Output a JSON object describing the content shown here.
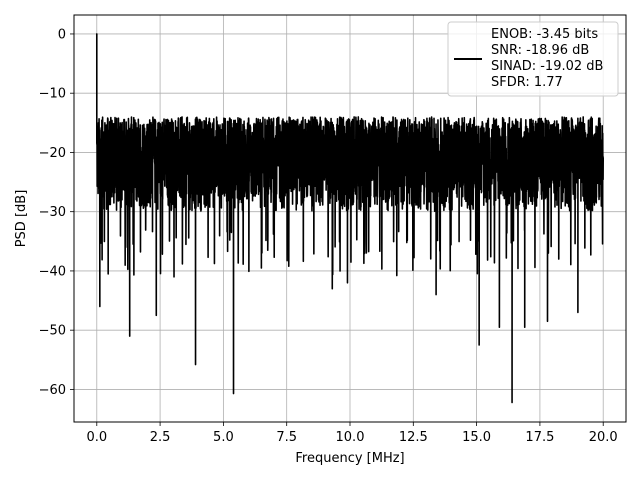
{
  "chart_data": {
    "type": "line",
    "title": "",
    "xlabel": "Frequency [MHz]",
    "ylabel": "PSD [dB]",
    "xlim": [
      -0.9,
      20.9
    ],
    "ylim": [
      -65.5,
      3.2
    ],
    "xticks": [
      0.0,
      2.5,
      5.0,
      7.5,
      10.0,
      12.5,
      15.0,
      17.5,
      20.0
    ],
    "xtick_labels": [
      "0.0",
      "2.5",
      "5.0",
      "7.5",
      "10.0",
      "12.5",
      "15.0",
      "17.5",
      "20.0"
    ],
    "yticks": [
      0,
      -10,
      -20,
      -30,
      -40,
      -50,
      -60
    ],
    "ytick_labels": [
      "0",
      "−10",
      "−20",
      "−30",
      "−40",
      "−50",
      "−60"
    ],
    "grid": true,
    "legend_position": "top-right",
    "series": [
      {
        "name": "ENOB: -3.45 bits\nSNR: -18.96 dB\nSINAD: -19.02 dB\nSFDR: 1.77",
        "color": "#000000",
        "x_start": 0.0,
        "x_end": 20.0,
        "noise_floor_typical_db": [
          -30,
          -14
        ],
        "peaks": [
          {
            "x": 0.0,
            "y": 0.0
          },
          {
            "x": 0.0,
            "y": -17
          },
          {
            "x": 0.12,
            "y": -46
          },
          {
            "x": 0.45,
            "y": -40.5
          },
          {
            "x": 1.3,
            "y": -51
          },
          {
            "x": 2.35,
            "y": -47.5
          },
          {
            "x": 3.05,
            "y": -41
          },
          {
            "x": 3.9,
            "y": -55.8
          },
          {
            "x": 5.4,
            "y": -60.7
          },
          {
            "x": 6.5,
            "y": -39.5
          },
          {
            "x": 9.3,
            "y": -43
          },
          {
            "x": 9.9,
            "y": -42
          },
          {
            "x": 13.4,
            "y": -44
          },
          {
            "x": 15.1,
            "y": -52.5
          },
          {
            "x": 15.9,
            "y": -49.5
          },
          {
            "x": 16.4,
            "y": -62.2
          },
          {
            "x": 16.9,
            "y": -49.5
          },
          {
            "x": 17.8,
            "y": -48.5
          },
          {
            "x": 19.0,
            "y": -47
          }
        ]
      }
    ],
    "legend_lines": [
      "ENOB: -3.45 bits",
      "SNR: -18.96 dB",
      "SINAD: -19.02 dB",
      "SFDR: 1.77"
    ]
  }
}
